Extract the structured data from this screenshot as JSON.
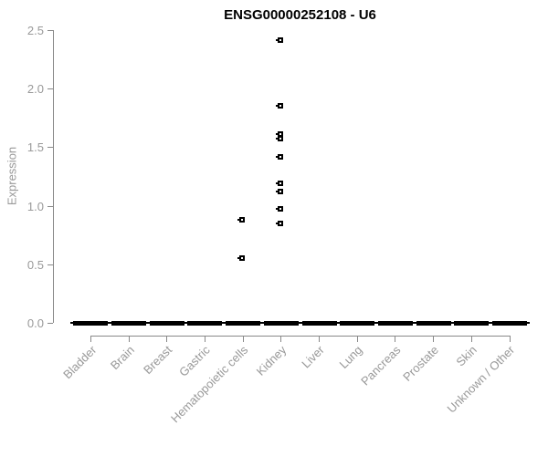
{
  "title": "ENSG00000252108 - U6",
  "chart_data": {
    "type": "scatter",
    "subtype": "boxplot-with-outliers",
    "title": "ENSG00000252108 - U6",
    "xlabel": "",
    "ylabel": "Expression",
    "ylim": [
      0,
      2.5
    ],
    "ytick_labels": [
      "0.0",
      "0.5",
      "1.0",
      "1.5",
      "2.0",
      "2.5"
    ],
    "ytick_values": [
      0,
      0.5,
      1.0,
      1.5,
      2.0,
      2.5
    ],
    "categories": [
      "Bladder",
      "Brain",
      "Breast",
      "Gastric",
      "Hematopoietic cells",
      "Kidney",
      "Liver",
      "Lung",
      "Pancreas",
      "Prostate",
      "Skin",
      "Unknown / Other"
    ],
    "baseline": {
      "value": 0,
      "note": "every category shows a collapsed box (thick black dash) at expression 0"
    },
    "outliers": [
      {
        "category": "Hematopoietic cells",
        "values": [
          0.88,
          0.55
        ]
      },
      {
        "category": "Kidney",
        "values": [
          2.41,
          1.85,
          1.61,
          1.57,
          1.42,
          1.19,
          1.12,
          0.97,
          0.85
        ]
      }
    ],
    "legend": "none",
    "grid": false,
    "colors": {
      "point": "#000000",
      "box_dash": "#000000",
      "axis": "#888888",
      "tick_label": "#999999",
      "title": "#000000",
      "background": "#ffffff"
    }
  }
}
